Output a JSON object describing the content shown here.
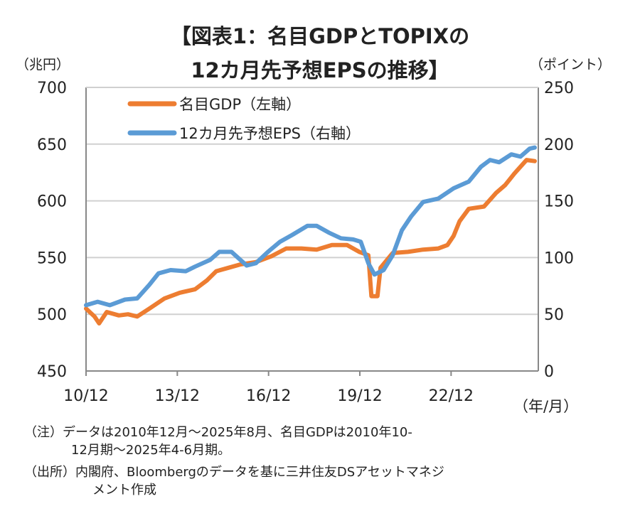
{
  "chart_data": {
    "type": "line",
    "title_line1": "【図表1：名目GDPとTOPIXの",
    "title_line2": "12カ月先予想EPSの推移】",
    "y_left_label": "（兆円）",
    "y_right_label": "（ポイント）",
    "x_label": "（年/月）",
    "x_range": [
      2010.92,
      2025.67
    ],
    "y_left_range": [
      450,
      700
    ],
    "y_right_range": [
      0,
      250
    ],
    "y_left_ticks": [
      "700",
      "650",
      "600",
      "550",
      "500",
      "450"
    ],
    "y_left_tick_values": [
      700,
      650,
      600,
      550,
      500,
      450
    ],
    "y_right_ticks": [
      "250",
      "200",
      "150",
      "100",
      "50",
      "0"
    ],
    "y_right_tick_values": [
      250,
      200,
      150,
      100,
      50,
      0
    ],
    "x_ticks": [
      "10/12",
      "13/12",
      "16/12",
      "19/12",
      "22/12"
    ],
    "x_tick_values": [
      2010.92,
      2013.92,
      2016.92,
      2019.92,
      2022.92
    ],
    "grid": true,
    "legend_position": "top-left",
    "series": [
      {
        "name": "名目GDP（左軸）",
        "axis": "left",
        "color": "#ED7D31",
        "x": [
          2010.92,
          2011.2,
          2011.35,
          2011.6,
          2012.0,
          2012.3,
          2012.6,
          2013.0,
          2013.5,
          2014.0,
          2014.5,
          2014.9,
          2015.2,
          2015.6,
          2016.0,
          2016.5,
          2017.0,
          2017.5,
          2018.0,
          2018.5,
          2019.0,
          2019.5,
          2019.9,
          2020.2,
          2020.3,
          2020.5,
          2020.6,
          2021.0,
          2021.5,
          2022.0,
          2022.5,
          2022.8,
          2023.0,
          2023.2,
          2023.5,
          2024.0,
          2024.4,
          2024.7,
          2025.0,
          2025.4,
          2025.67
        ],
        "y": [
          505,
          498,
          492,
          502,
          499,
          500,
          498,
          505,
          514,
          519,
          522,
          530,
          538,
          541,
          544,
          546,
          551,
          558,
          558,
          557,
          561,
          561,
          555,
          552,
          516,
          516,
          541,
          554,
          555,
          557,
          558,
          561,
          569,
          582,
          593,
          595,
          607,
          614,
          624,
          636,
          635
        ]
      },
      {
        "name": "12カ月先予想EPS（右軸）",
        "axis": "right",
        "color": "#5B9BD5",
        "x": [
          2010.92,
          2011.3,
          2011.7,
          2012.2,
          2012.6,
          2013.0,
          2013.3,
          2013.7,
          2014.2,
          2014.5,
          2015.0,
          2015.3,
          2015.7,
          2016.2,
          2016.5,
          2016.9,
          2017.3,
          2017.7,
          2018.2,
          2018.5,
          2018.9,
          2019.3,
          2019.7,
          2019.95,
          2020.2,
          2020.4,
          2020.7,
          2021.0,
          2021.3,
          2021.6,
          2022.0,
          2022.5,
          2023.0,
          2023.5,
          2023.9,
          2024.2,
          2024.5,
          2024.9,
          2025.2,
          2025.5,
          2025.67
        ],
        "y": [
          58,
          61,
          58,
          63,
          64,
          76,
          86,
          89,
          88,
          92,
          98,
          105,
          105,
          93,
          95,
          105,
          114,
          120,
          128,
          128,
          122,
          117,
          116,
          114,
          95,
          85,
          89,
          102,
          124,
          136,
          149,
          152,
          161,
          167,
          180,
          186,
          184,
          191,
          189,
          196,
          197
        ]
      }
    ]
  },
  "notes": {
    "line1": "（注）データは2010年12月～2025年8月、名目GDPは2010年10-",
    "line2": "12月期～2025年4-6月期。",
    "line3": "（出所）内閣府、Bloombergのデータを基に三井住友DSアセットマネジ",
    "line4": "メント作成"
  }
}
